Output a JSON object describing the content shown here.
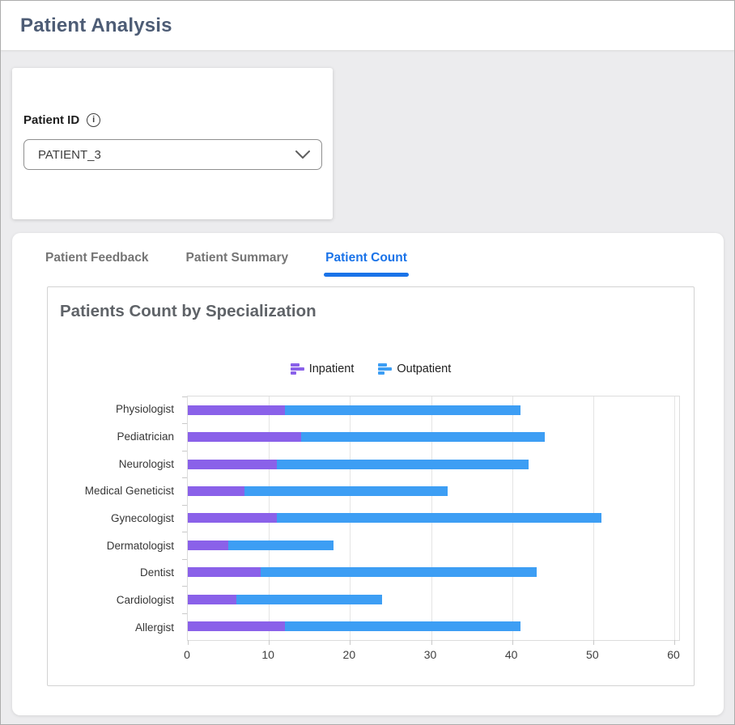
{
  "header": {
    "title": "Patient Analysis"
  },
  "filter": {
    "label": "Patient ID",
    "selected_value": "PATIENT_3"
  },
  "tabs": [
    {
      "label": "Patient Feedback",
      "active": false
    },
    {
      "label": "Patient Summary",
      "active": false
    },
    {
      "label": "Patient Count",
      "active": true
    }
  ],
  "chart_data": {
    "type": "bar",
    "orientation": "horizontal",
    "stacked": true,
    "title": "Patients Count by Specialization",
    "categories": [
      "Physiologist",
      "Pediatrician",
      "Neurologist",
      "Medical Geneticist",
      "Gynecologist",
      "Dermatologist",
      "Dentist",
      "Cardiologist",
      "Allergist"
    ],
    "series": [
      {
        "name": "Inpatient",
        "color": "#8a61e9",
        "values": [
          12,
          14,
          11,
          7,
          11,
          5,
          9,
          6,
          12
        ]
      },
      {
        "name": "Outpatient",
        "color": "#3d9ef4",
        "values": [
          29,
          30,
          31,
          25,
          40,
          13,
          34,
          18,
          29
        ]
      }
    ],
    "totals": [
      41,
      44,
      42,
      32,
      51,
      18,
      43,
      24,
      41
    ],
    "xlim": [
      0,
      60
    ],
    "x_ticks": [
      0,
      10,
      20,
      30,
      40,
      50,
      60
    ],
    "grid": true,
    "legend_position": "top-center",
    "xlabel": "",
    "ylabel": ""
  },
  "colors": {
    "active_tab": "#1a73e8",
    "inactive_tab_text": "#757575",
    "header_title_text": "#4d5c75",
    "chart_title_text": "#5f6368",
    "page_background": "#ececee",
    "inpatient": "#8a61e9",
    "outpatient": "#3d9ef4"
  }
}
